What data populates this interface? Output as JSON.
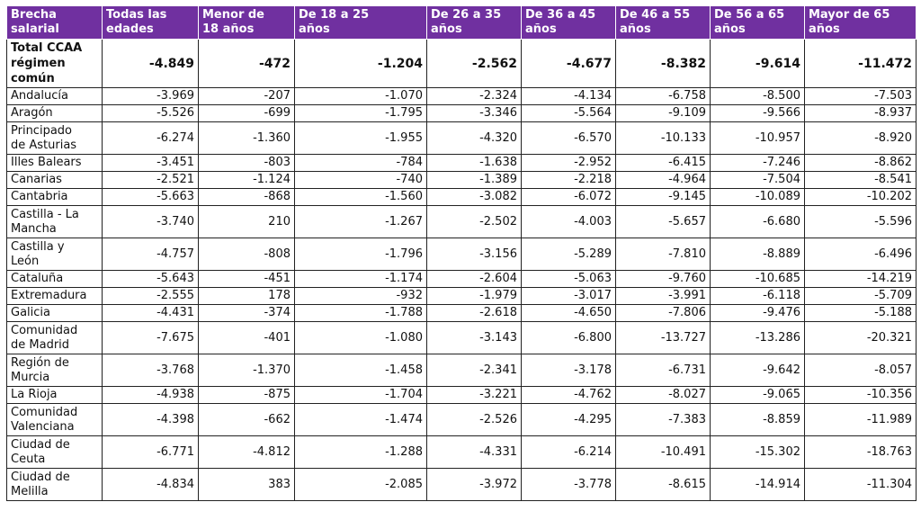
{
  "table": {
    "headers": [
      "Brecha\nsalarial",
      "Todas las\nedades",
      "Menor de\n18 años",
      "De 18 a 25\naños",
      "De 26 a 35\naños",
      "De 36 a 45\naños",
      "De 46 a 55\naños",
      "De 56 a 65\naños",
      "Mayor de 65\naños"
    ],
    "total": {
      "name": "Total CCAA\nrégimen\ncomún",
      "values": [
        "-4.849",
        "-472",
        "-1.204",
        "-2.562",
        "-4.677",
        "-8.382",
        "-9.614",
        "-11.472"
      ]
    },
    "rows": [
      {
        "name": "Andalucía",
        "values": [
          "-3.969",
          "-207",
          "-1.070",
          "-2.324",
          "-4.134",
          "-6.758",
          "-8.500",
          "-7.503"
        ]
      },
      {
        "name": "Aragón",
        "values": [
          "-5.526",
          "-699",
          "-1.795",
          "-3.346",
          "-5.564",
          "-9.109",
          "-9.566",
          "-8.937"
        ]
      },
      {
        "name": "Principado\nde Asturias",
        "values": [
          "-6.274",
          "-1.360",
          "-1.955",
          "-4.320",
          "-6.570",
          "-10.133",
          "-10.957",
          "-8.920"
        ]
      },
      {
        "name": "Illes Balears",
        "values": [
          "-3.451",
          "-803",
          "-784",
          "-1.638",
          "-2.952",
          "-6.415",
          "-7.246",
          "-8.862"
        ]
      },
      {
        "name": "Canarias",
        "values": [
          "-2.521",
          "-1.124",
          "-740",
          "-1.389",
          "-2.218",
          "-4.964",
          "-7.504",
          "-8.541"
        ]
      },
      {
        "name": "Cantabria",
        "values": [
          "-5.663",
          "-868",
          "-1.560",
          "-3.082",
          "-6.072",
          "-9.145",
          "-10.089",
          "-10.202"
        ]
      },
      {
        "name": "Castilla - La\nMancha",
        "values": [
          "-3.740",
          "210",
          "-1.267",
          "-2.502",
          "-4.003",
          "-5.657",
          "-6.680",
          "-5.596"
        ]
      },
      {
        "name": "Castilla y\nLeón",
        "values": [
          "-4.757",
          "-808",
          "-1.796",
          "-3.156",
          "-5.289",
          "-7.810",
          "-8.889",
          "-6.496"
        ]
      },
      {
        "name": "Cataluña",
        "values": [
          "-5.643",
          "-451",
          "-1.174",
          "-2.604",
          "-5.063",
          "-9.760",
          "-10.685",
          "-14.219"
        ]
      },
      {
        "name": "Extremadura",
        "values": [
          "-2.555",
          "178",
          "-932",
          "-1.979",
          "-3.017",
          "-3.991",
          "-6.118",
          "-5.709"
        ]
      },
      {
        "name": "Galicia",
        "values": [
          "-4.431",
          "-374",
          "-1.788",
          "-2.618",
          "-4.650",
          "-7.806",
          "-9.476",
          "-5.188"
        ]
      },
      {
        "name": "Comunidad\nde Madrid",
        "values": [
          "-7.675",
          "-401",
          "-1.080",
          "-3.143",
          "-6.800",
          "-13.727",
          "-13.286",
          "-20.321"
        ]
      },
      {
        "name": "Región de\nMurcia",
        "values": [
          "-3.768",
          "-1.370",
          "-1.458",
          "-2.341",
          "-3.178",
          "-6.731",
          "-9.642",
          "-8.057"
        ]
      },
      {
        "name": "La Rioja",
        "values": [
          "-4.938",
          "-875",
          "-1.704",
          "-3.221",
          "-4.762",
          "-8.027",
          "-9.065",
          "-10.356"
        ]
      },
      {
        "name": "Comunidad\nValenciana",
        "values": [
          "-4.398",
          "-662",
          "-1.474",
          "-2.526",
          "-4.295",
          "-7.383",
          "-8.859",
          "-11.989"
        ]
      },
      {
        "name": "Ciudad de\nCeuta",
        "values": [
          "-6.771",
          "-4.812",
          "-1.288",
          "-4.331",
          "-6.214",
          "-10.491",
          "-15.302",
          "-18.763"
        ]
      },
      {
        "name": "Ciudad de\nMelilla",
        "values": [
          "-4.834",
          "383",
          "-2.085",
          "-3.972",
          "-3.778",
          "-8.615",
          "-14.914",
          "-11.304"
        ]
      }
    ]
  },
  "colors": {
    "header_bg": "#7030a0",
    "header_text": "#ffffff",
    "border": "#222222"
  }
}
